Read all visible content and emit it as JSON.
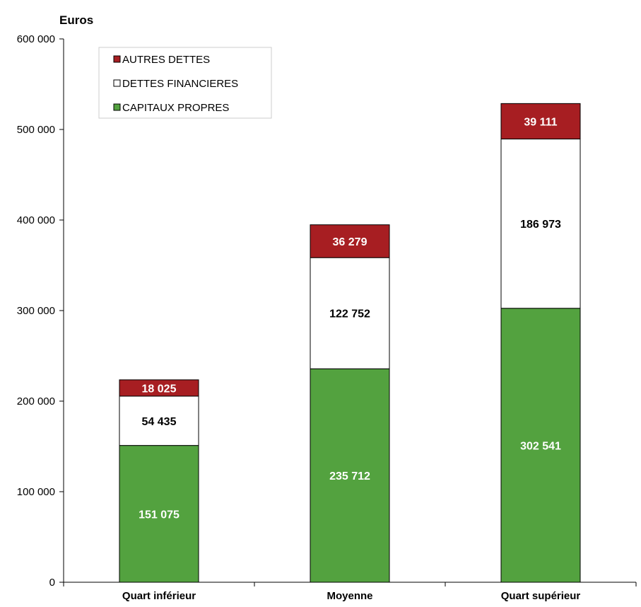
{
  "chart_data": {
    "type": "bar",
    "stacked": true,
    "title": "",
    "ylabel": "Euros",
    "xlabel": "",
    "ylim": [
      0,
      600000
    ],
    "yticks": [
      0,
      100000,
      200000,
      300000,
      400000,
      500000,
      600000
    ],
    "ytick_labels": [
      "0",
      "100 000",
      "200 000",
      "300 000",
      "400 000",
      "500 000",
      "600 000"
    ],
    "categories": [
      "Quart inférieur",
      "Moyenne",
      "Quart supérieur"
    ],
    "series": [
      {
        "name": "CAPITAUX PROPRES",
        "color": "#53A23F",
        "label_color": "#ffffff",
        "values": [
          151075,
          235712,
          302541
        ],
        "labels": [
          "151 075",
          "235 712",
          "302 541"
        ]
      },
      {
        "name": "DETTES FINANCIERES",
        "color": "#ffffff",
        "label_color": "#000000",
        "values": [
          54435,
          122752,
          186973
        ],
        "labels": [
          "54 435",
          "122 752",
          "186 973"
        ]
      },
      {
        "name": "AUTRES DETTES",
        "color": "#A71E22",
        "label_color": "#ffffff",
        "values": [
          18025,
          36279,
          39111
        ],
        "labels": [
          "18 025",
          "36 279",
          "39 111"
        ]
      }
    ],
    "legend": {
      "position": "top-left",
      "order": [
        "AUTRES DETTES",
        "DETTES FINANCIERES",
        "CAPITAUX PROPRES"
      ]
    },
    "grid": false
  }
}
